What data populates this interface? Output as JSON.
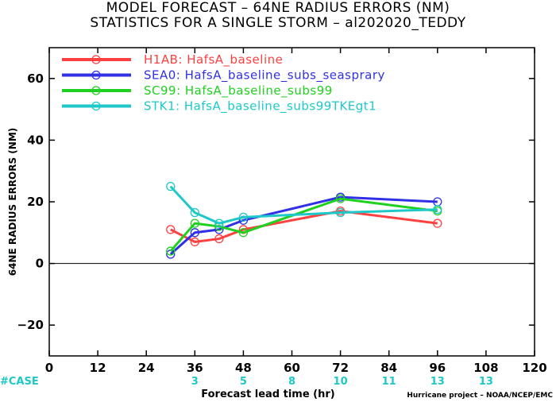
{
  "title": {
    "line1": "MODEL FORECAST – 64NE RADIUS ERRORS (NM)",
    "line2": "STATISTICS FOR A SINGLE STORM – al202020_TEDDY"
  },
  "footer": {
    "case_label": "#CASE",
    "credit": "Hurricane project – NOAA/NCEP/EMC"
  },
  "chart_data": {
    "type": "line",
    "xlabel": "Forecast lead time (hr)",
    "ylabel": "64NE RADIUS ERRORS (NM)",
    "xlim": [
      0,
      120
    ],
    "ylim": [
      -30,
      70
    ],
    "xticks": [
      0,
      12,
      24,
      36,
      48,
      60,
      72,
      84,
      96,
      108,
      120
    ],
    "yticks": [
      -20,
      0,
      20,
      40,
      60
    ],
    "grid": false,
    "legend_position": "top-left",
    "x": [
      30,
      36,
      42,
      48,
      72,
      96
    ],
    "series": [
      {
        "name": "H1AB: HafsA_baseline",
        "color": "#ff4040",
        "values": [
          11,
          7,
          8,
          11,
          17,
          13
        ]
      },
      {
        "name": "SEA0: HafsA_baseline_subs_seasprary",
        "color": "#3030e6",
        "values": [
          3,
          10,
          11,
          14,
          21.5,
          20
        ]
      },
      {
        "name": "SC99: HafsA_baseline_subs99",
        "color": "#20d020",
        "values": [
          4,
          13,
          12,
          10,
          21,
          17
        ]
      },
      {
        "name": "STK1: HafsA_baseline_subs99TKEgt1",
        "color": "#1ec8c8",
        "values": [
          25,
          16.5,
          13,
          15,
          16.5,
          17.5
        ]
      }
    ],
    "cases": [
      {
        "x": 36,
        "count": "3"
      },
      {
        "x": 48,
        "count": "5"
      },
      {
        "x": 60,
        "count": "8"
      },
      {
        "x": 72,
        "count": "10"
      },
      {
        "x": 84,
        "count": "11"
      },
      {
        "x": 96,
        "count": "13"
      },
      {
        "x": 108,
        "count": "13"
      }
    ]
  }
}
